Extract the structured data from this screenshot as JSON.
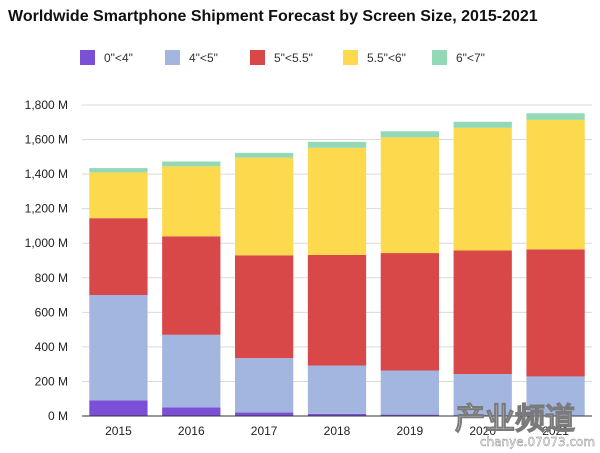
{
  "chart_data": {
    "type": "bar",
    "stacked": true,
    "title": "Worldwide Smartphone Shipment Forecast by Screen Size, 2015-2021",
    "xlabel": "",
    "ylabel": "",
    "ylim": [
      0,
      1800
    ],
    "yticks": [
      0,
      200,
      400,
      600,
      800,
      1000,
      1200,
      1400,
      1600,
      1800
    ],
    "ytick_labels": [
      "0 M",
      "200 M",
      "400 M",
      "600 M",
      "800 M",
      "1,000 M",
      "1,200 M",
      "1,400 M",
      "1,600 M",
      "1,800 M"
    ],
    "grid": true,
    "legend_position": "top",
    "categories": [
      "2015",
      "2016",
      "2017",
      "2018",
      "2019",
      "2020",
      "2021"
    ],
    "series": [
      {
        "name": "0\"<4\"",
        "color": "#7b4fd6",
        "values": [
          90,
          50,
          20,
          12,
          8,
          5,
          4
        ]
      },
      {
        "name": "4\"<5\"",
        "color": "#a3b6e0",
        "values": [
          610,
          420,
          315,
          280,
          255,
          238,
          225
        ]
      },
      {
        "name": "5\"<5.5\"",
        "color": "#d94848",
        "values": [
          445,
          570,
          595,
          640,
          680,
          715,
          735
        ]
      },
      {
        "name": "5.5\"<6\"",
        "color": "#fdd94e",
        "values": [
          265,
          405,
          565,
          620,
          670,
          710,
          750
        ]
      },
      {
        "name": "6\"<7\"",
        "color": "#93d9b5",
        "values": [
          25,
          28,
          28,
          35,
          35,
          35,
          38
        ]
      }
    ]
  },
  "watermark": {
    "brand": "产业频道",
    "url": "chanye.07073.com"
  }
}
